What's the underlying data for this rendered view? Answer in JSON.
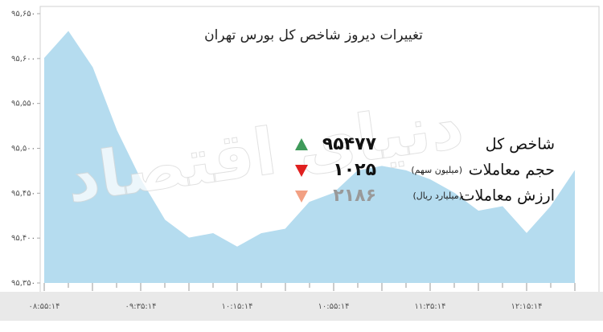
{
  "chart_data": {
    "type": "area",
    "title": "تغییرات دیروز شاخص کل بورس تهران",
    "watermark": "دنیای اقتصاد",
    "categories": [
      "۰۸:۵۵:۱۴",
      null,
      null,
      null,
      "۰۹:۳۵:۱۴",
      null,
      null,
      null,
      "۱۰:۱۵:۱۴",
      null,
      null,
      null,
      "۱۰:۵۵:۱۴",
      null,
      null,
      null,
      "۱۱:۳۵:۱۴",
      null,
      null,
      null,
      "۱۲:۱۵:۱۴",
      null,
      null
    ],
    "values": [
      95600,
      95630,
      95590,
      95520,
      95465,
      95420,
      95400,
      95405,
      95390,
      95405,
      95410,
      95440,
      95450,
      95475,
      95480,
      95475,
      95465,
      95450,
      95430,
      95435,
      95405,
      95435,
      95475
    ],
    "color": "#b5dcef",
    "ylim": [
      95350,
      95650
    ],
    "yticks": [
      {
        "value": 95350,
        "label": "۹۵,۳۵۰"
      },
      {
        "value": 95400,
        "label": "۹۵,۴۰۰"
      },
      {
        "value": 95450,
        "label": "۹۵,۴۵۰"
      },
      {
        "value": 95500,
        "label": "۹۵,۵۰۰"
      },
      {
        "value": 95550,
        "label": "۹۵,۵۵۰"
      },
      {
        "value": 95600,
        "label": "۹۵,۶۰۰"
      },
      {
        "value": 95650,
        "label": "۹۵,۶۵۰"
      }
    ],
    "grid": false,
    "indicators": [
      {
        "label": "شاخص کل",
        "value": "۹۵۴۷۷",
        "direction": "up",
        "color": "#3f9a5a"
      },
      {
        "label": "حجم معاملات",
        "unit": "(میلیون سهم)",
        "value": "۱۰۲۵",
        "direction": "down",
        "color": "#e0201f"
      },
      {
        "label": "ارزش معاملات",
        "unit": "(میلیارد ریال)",
        "value": "۲۱۸۶",
        "direction": "down",
        "color": "#f2a083"
      }
    ]
  }
}
